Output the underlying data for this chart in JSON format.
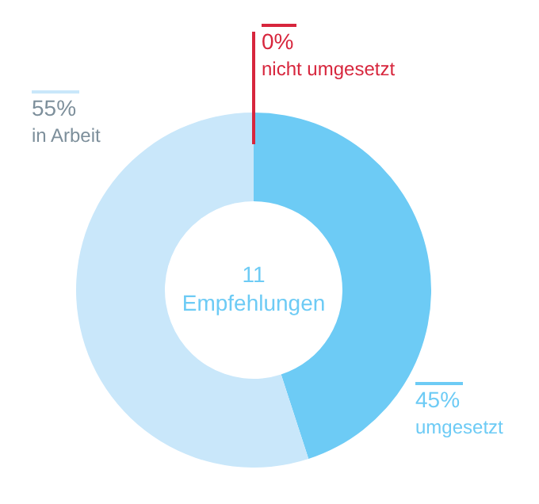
{
  "chart_data": {
    "type": "donut",
    "categories": [
      "umgesetzt",
      "in Arbeit",
      "nicht umgesetzt"
    ],
    "values": [
      45,
      55,
      0
    ],
    "colors": [
      "#6dcbf5",
      "#c9e7fa",
      "#d7263d"
    ],
    "value_labels": [
      "45%",
      "55%",
      "0%"
    ],
    "annotations": [
      "11",
      "Empfehlungen"
    ],
    "legend": false
  }
}
